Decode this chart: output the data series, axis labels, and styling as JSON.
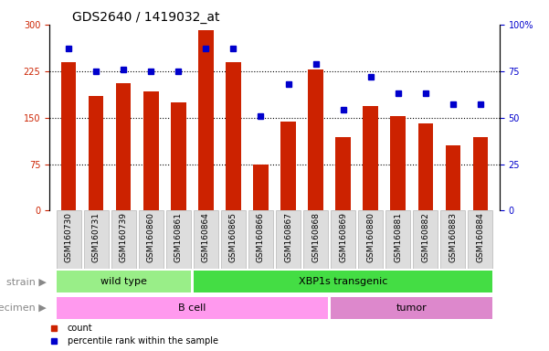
{
  "title": "GDS2640 / 1419032_at",
  "samples": [
    "GSM160730",
    "GSM160731",
    "GSM160739",
    "GSM160860",
    "GSM160861",
    "GSM160864",
    "GSM160865",
    "GSM160866",
    "GSM160867",
    "GSM160868",
    "GSM160869",
    "GSM160880",
    "GSM160881",
    "GSM160882",
    "GSM160883",
    "GSM160884"
  ],
  "bar_values": [
    240,
    185,
    205,
    192,
    175,
    291,
    240,
    75,
    143,
    228,
    118,
    168,
    152,
    140,
    105,
    118
  ],
  "dot_values": [
    87,
    75,
    76,
    75,
    75,
    87,
    87,
    51,
    68,
    79,
    54,
    72,
    63,
    63,
    57,
    57
  ],
  "bar_color": "#cc2200",
  "dot_color": "#0000cc",
  "ylim_left": [
    0,
    300
  ],
  "ylim_right": [
    0,
    100
  ],
  "yticks_left": [
    0,
    75,
    150,
    225,
    300
  ],
  "ytick_labels_left": [
    "0",
    "75",
    "150",
    "225",
    "300"
  ],
  "yticks_right": [
    0,
    25,
    50,
    75,
    100
  ],
  "ytick_labels_right": [
    "0",
    "25",
    "50",
    "75",
    "100%"
  ],
  "hlines": [
    75,
    150,
    225
  ],
  "strain_groups": [
    {
      "label": "wild type",
      "start": 0,
      "end": 4,
      "color": "#99ee88"
    },
    {
      "label": "XBP1s transgenic",
      "start": 5,
      "end": 15,
      "color": "#44dd44"
    }
  ],
  "specimen_groups": [
    {
      "label": "B cell",
      "start": 0,
      "end": 9,
      "color": "#ff99ee"
    },
    {
      "label": "tumor",
      "start": 10,
      "end": 15,
      "color": "#dd88cc"
    }
  ],
  "strain_label": "strain",
  "specimen_label": "specimen",
  "legend_count_label": "count",
  "legend_pct_label": "percentile rank within the sample",
  "plot_bg": "#ffffff",
  "fig_bg": "#ffffff",
  "bar_width": 0.55,
  "title_fontsize": 10,
  "tick_fontsize": 7,
  "label_fontsize": 8,
  "annotation_fontsize": 8,
  "sample_label_fontsize": 6.5
}
